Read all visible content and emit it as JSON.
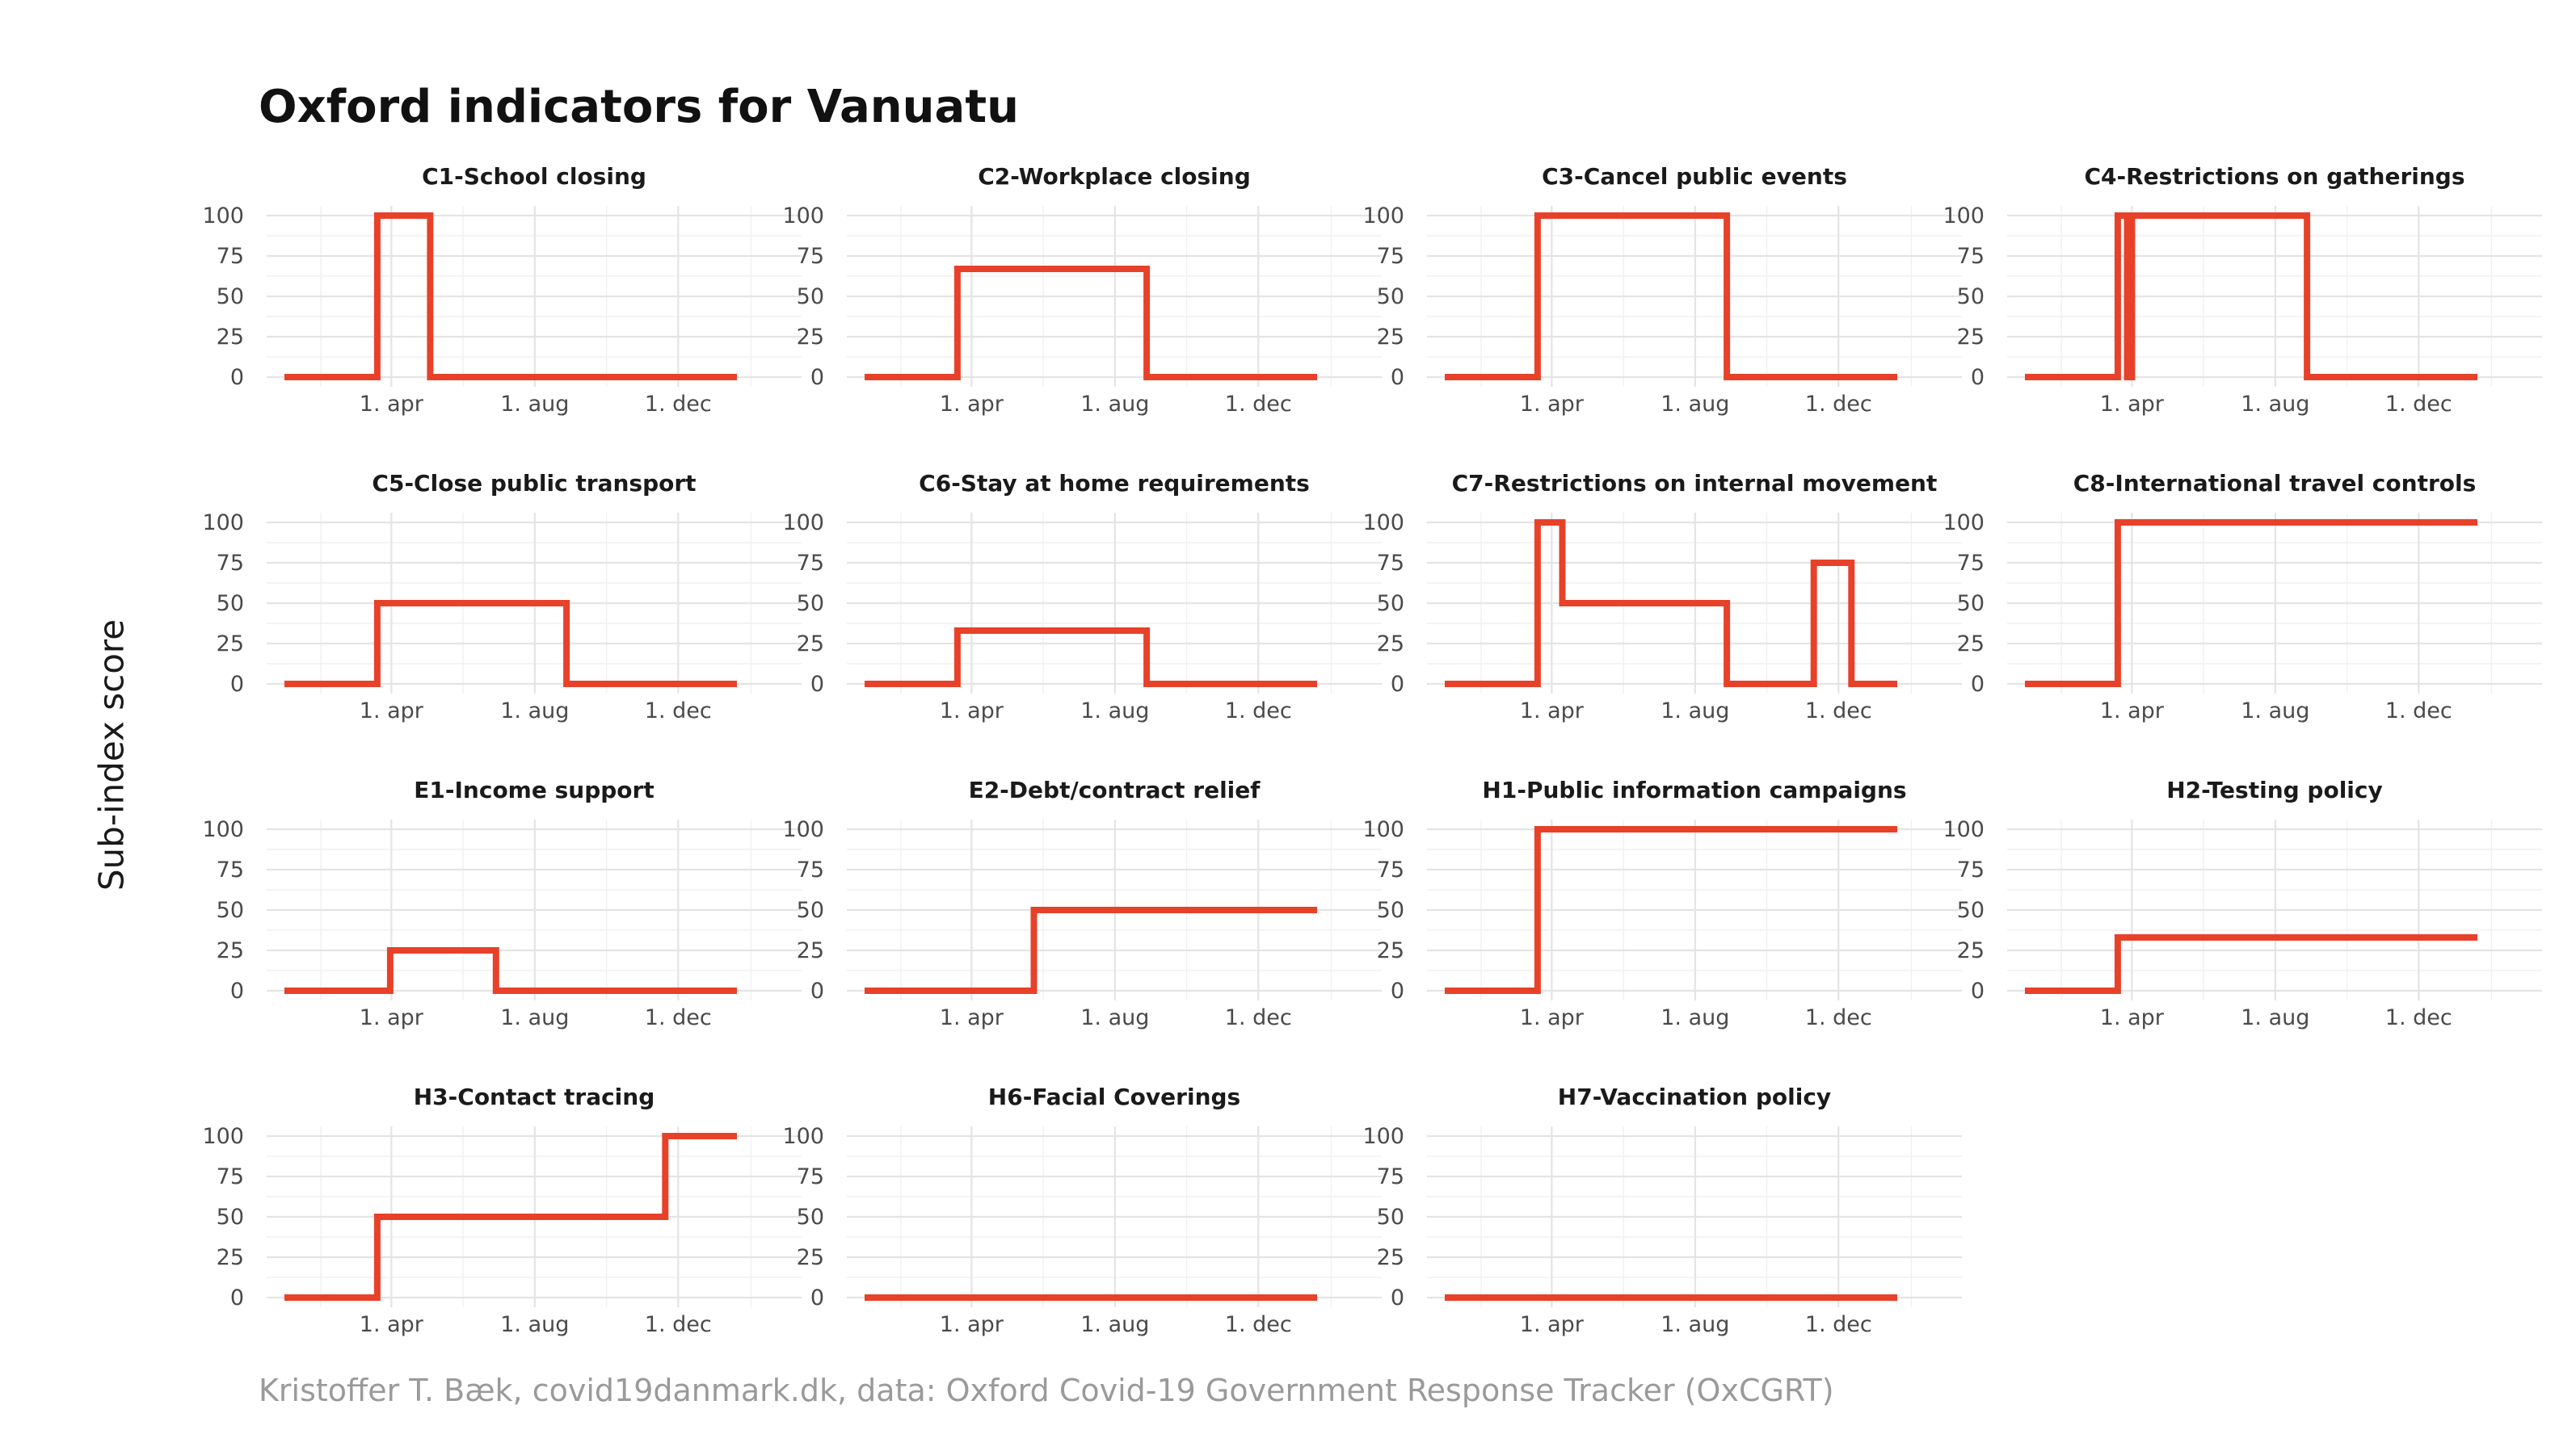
{
  "title": "Oxford indicators for Vanuatu",
  "y_axis_label": "Sub-index score",
  "caption": "Kristoffer T. Bæk, covid19danmark.dk, data: Oxford Covid-19 Government Response Tracker (OxCGRT)",
  "line_color": "#e8412a",
  "chart_data": [
    {
      "type": "line",
      "title": "C1-School closing",
      "x_ticks": [
        "1. apr",
        "1. aug",
        "1. dec"
      ],
      "y_ticks": [
        0,
        25,
        50,
        75,
        100
      ],
      "ylim": [
        0,
        100
      ],
      "x": [
        "2020-01-01",
        "2020-03-20",
        "2020-03-20",
        "2020-05-04",
        "2020-05-04",
        "2021-01-20"
      ],
      "values": [
        0,
        0,
        100,
        100,
        0,
        0
      ]
    },
    {
      "type": "line",
      "title": "C2-Workplace closing",
      "x_ticks": [
        "1. apr",
        "1. aug",
        "1. dec"
      ],
      "y_ticks": [
        0,
        25,
        50,
        75,
        100
      ],
      "ylim": [
        0,
        100
      ],
      "x": [
        "2020-01-01",
        "2020-03-20",
        "2020-03-20",
        "2020-08-28",
        "2020-08-28",
        "2021-01-20"
      ],
      "values": [
        0,
        0,
        67,
        67,
        0,
        0
      ]
    },
    {
      "type": "line",
      "title": "C3-Cancel public events",
      "x_ticks": [
        "1. apr",
        "1. aug",
        "1. dec"
      ],
      "y_ticks": [
        0,
        25,
        50,
        75,
        100
      ],
      "ylim": [
        0,
        100
      ],
      "x": [
        "2020-01-01",
        "2020-03-20",
        "2020-03-20",
        "2020-08-28",
        "2020-08-28",
        "2021-01-20"
      ],
      "values": [
        0,
        0,
        100,
        100,
        0,
        0
      ]
    },
    {
      "type": "line",
      "title": "C4-Restrictions on gatherings",
      "x_ticks": [
        "1. apr",
        "1. aug",
        "1. dec"
      ],
      "y_ticks": [
        0,
        25,
        50,
        75,
        100
      ],
      "ylim": [
        0,
        100
      ],
      "x": [
        "2020-01-01",
        "2020-03-20",
        "2020-03-20",
        "2020-03-28",
        "2020-03-28",
        "2020-04-01",
        "2020-04-01",
        "2020-08-28",
        "2020-08-28",
        "2021-01-20"
      ],
      "values": [
        0,
        0,
        100,
        100,
        0,
        0,
        100,
        100,
        0,
        0
      ]
    },
    {
      "type": "line",
      "title": "C5-Close public transport",
      "x_ticks": [
        "1. apr",
        "1. aug",
        "1. dec"
      ],
      "y_ticks": [
        0,
        25,
        50,
        75,
        100
      ],
      "ylim": [
        0,
        100
      ],
      "x": [
        "2020-01-01",
        "2020-03-20",
        "2020-03-20",
        "2020-08-28",
        "2020-08-28",
        "2021-01-20"
      ],
      "values": [
        0,
        0,
        50,
        50,
        0,
        0
      ]
    },
    {
      "type": "line",
      "title": "C6-Stay at home requirements",
      "x_ticks": [
        "1. apr",
        "1. aug",
        "1. dec"
      ],
      "y_ticks": [
        0,
        25,
        50,
        75,
        100
      ],
      "ylim": [
        0,
        100
      ],
      "x": [
        "2020-01-01",
        "2020-03-20",
        "2020-03-20",
        "2020-08-28",
        "2020-08-28",
        "2021-01-20"
      ],
      "values": [
        0,
        0,
        33,
        33,
        0,
        0
      ]
    },
    {
      "type": "line",
      "title": "C7-Restrictions on internal movement",
      "x_ticks": [
        "1. apr",
        "1. aug",
        "1. dec"
      ],
      "y_ticks": [
        0,
        25,
        50,
        75,
        100
      ],
      "ylim": [
        0,
        100
      ],
      "x": [
        "2020-01-01",
        "2020-03-20",
        "2020-03-20",
        "2020-04-10",
        "2020-04-10",
        "2020-08-28",
        "2020-08-28",
        "2020-11-10",
        "2020-11-10",
        "2020-12-12",
        "2020-12-12",
        "2021-01-20"
      ],
      "values": [
        0,
        0,
        100,
        100,
        50,
        50,
        0,
        0,
        75,
        75,
        0,
        0
      ]
    },
    {
      "type": "line",
      "title": "C8-International travel controls",
      "x_ticks": [
        "1. apr",
        "1. aug",
        "1. dec"
      ],
      "y_ticks": [
        0,
        25,
        50,
        75,
        100
      ],
      "ylim": [
        0,
        100
      ],
      "x": [
        "2020-01-01",
        "2020-03-20",
        "2020-03-20",
        "2021-01-20"
      ],
      "values": [
        0,
        0,
        100,
        100
      ]
    },
    {
      "type": "line",
      "title": "E1-Income support",
      "x_ticks": [
        "1. apr",
        "1. aug",
        "1. dec"
      ],
      "y_ticks": [
        0,
        25,
        50,
        75,
        100
      ],
      "ylim": [
        0,
        100
      ],
      "x": [
        "2020-01-01",
        "2020-03-31",
        "2020-03-31",
        "2020-06-29",
        "2020-06-29",
        "2021-01-20"
      ],
      "values": [
        0,
        0,
        25,
        25,
        0,
        0
      ]
    },
    {
      "type": "line",
      "title": "E2-Debt/contract relief",
      "x_ticks": [
        "1. apr",
        "1. aug",
        "1. dec"
      ],
      "y_ticks": [
        0,
        25,
        50,
        75,
        100
      ],
      "ylim": [
        0,
        100
      ],
      "x": [
        "2020-01-01",
        "2020-05-24",
        "2020-05-24",
        "2021-01-20"
      ],
      "values": [
        0,
        0,
        50,
        50
      ]
    },
    {
      "type": "line",
      "title": "H1-Public information campaigns",
      "x_ticks": [
        "1. apr",
        "1. aug",
        "1. dec"
      ],
      "y_ticks": [
        0,
        25,
        50,
        75,
        100
      ],
      "ylim": [
        0,
        100
      ],
      "x": [
        "2020-01-01",
        "2020-03-20",
        "2020-03-20",
        "2021-01-20"
      ],
      "values": [
        0,
        0,
        100,
        100
      ]
    },
    {
      "type": "line",
      "title": "H2-Testing policy",
      "x_ticks": [
        "1. apr",
        "1. aug",
        "1. dec"
      ],
      "y_ticks": [
        0,
        25,
        50,
        75,
        100
      ],
      "ylim": [
        0,
        100
      ],
      "x": [
        "2020-01-01",
        "2020-03-20",
        "2020-03-20",
        "2021-01-20"
      ],
      "values": [
        0,
        0,
        33,
        33
      ]
    },
    {
      "type": "line",
      "title": "H3-Contact tracing",
      "x_ticks": [
        "1. apr",
        "1. aug",
        "1. dec"
      ],
      "y_ticks": [
        0,
        25,
        50,
        75,
        100
      ],
      "ylim": [
        0,
        100
      ],
      "x": [
        "2020-01-01",
        "2020-03-20",
        "2020-03-20",
        "2020-11-20",
        "2020-11-20",
        "2021-01-20"
      ],
      "values": [
        0,
        0,
        50,
        50,
        100,
        100
      ]
    },
    {
      "type": "line",
      "title": "H6-Facial Coverings",
      "x_ticks": [
        "1. apr",
        "1. aug",
        "1. dec"
      ],
      "y_ticks": [
        0,
        25,
        50,
        75,
        100
      ],
      "ylim": [
        0,
        100
      ],
      "x": [
        "2020-01-01",
        "2021-01-20"
      ],
      "values": [
        0,
        0
      ]
    },
    {
      "type": "line",
      "title": "H7-Vaccination policy",
      "x_ticks": [
        "1. apr",
        "1. aug",
        "1. dec"
      ],
      "y_ticks": [
        0,
        25,
        50,
        75,
        100
      ],
      "ylim": [
        0,
        100
      ],
      "x": [
        "2020-01-01",
        "2021-01-20"
      ],
      "values": [
        0,
        0
      ]
    }
  ]
}
